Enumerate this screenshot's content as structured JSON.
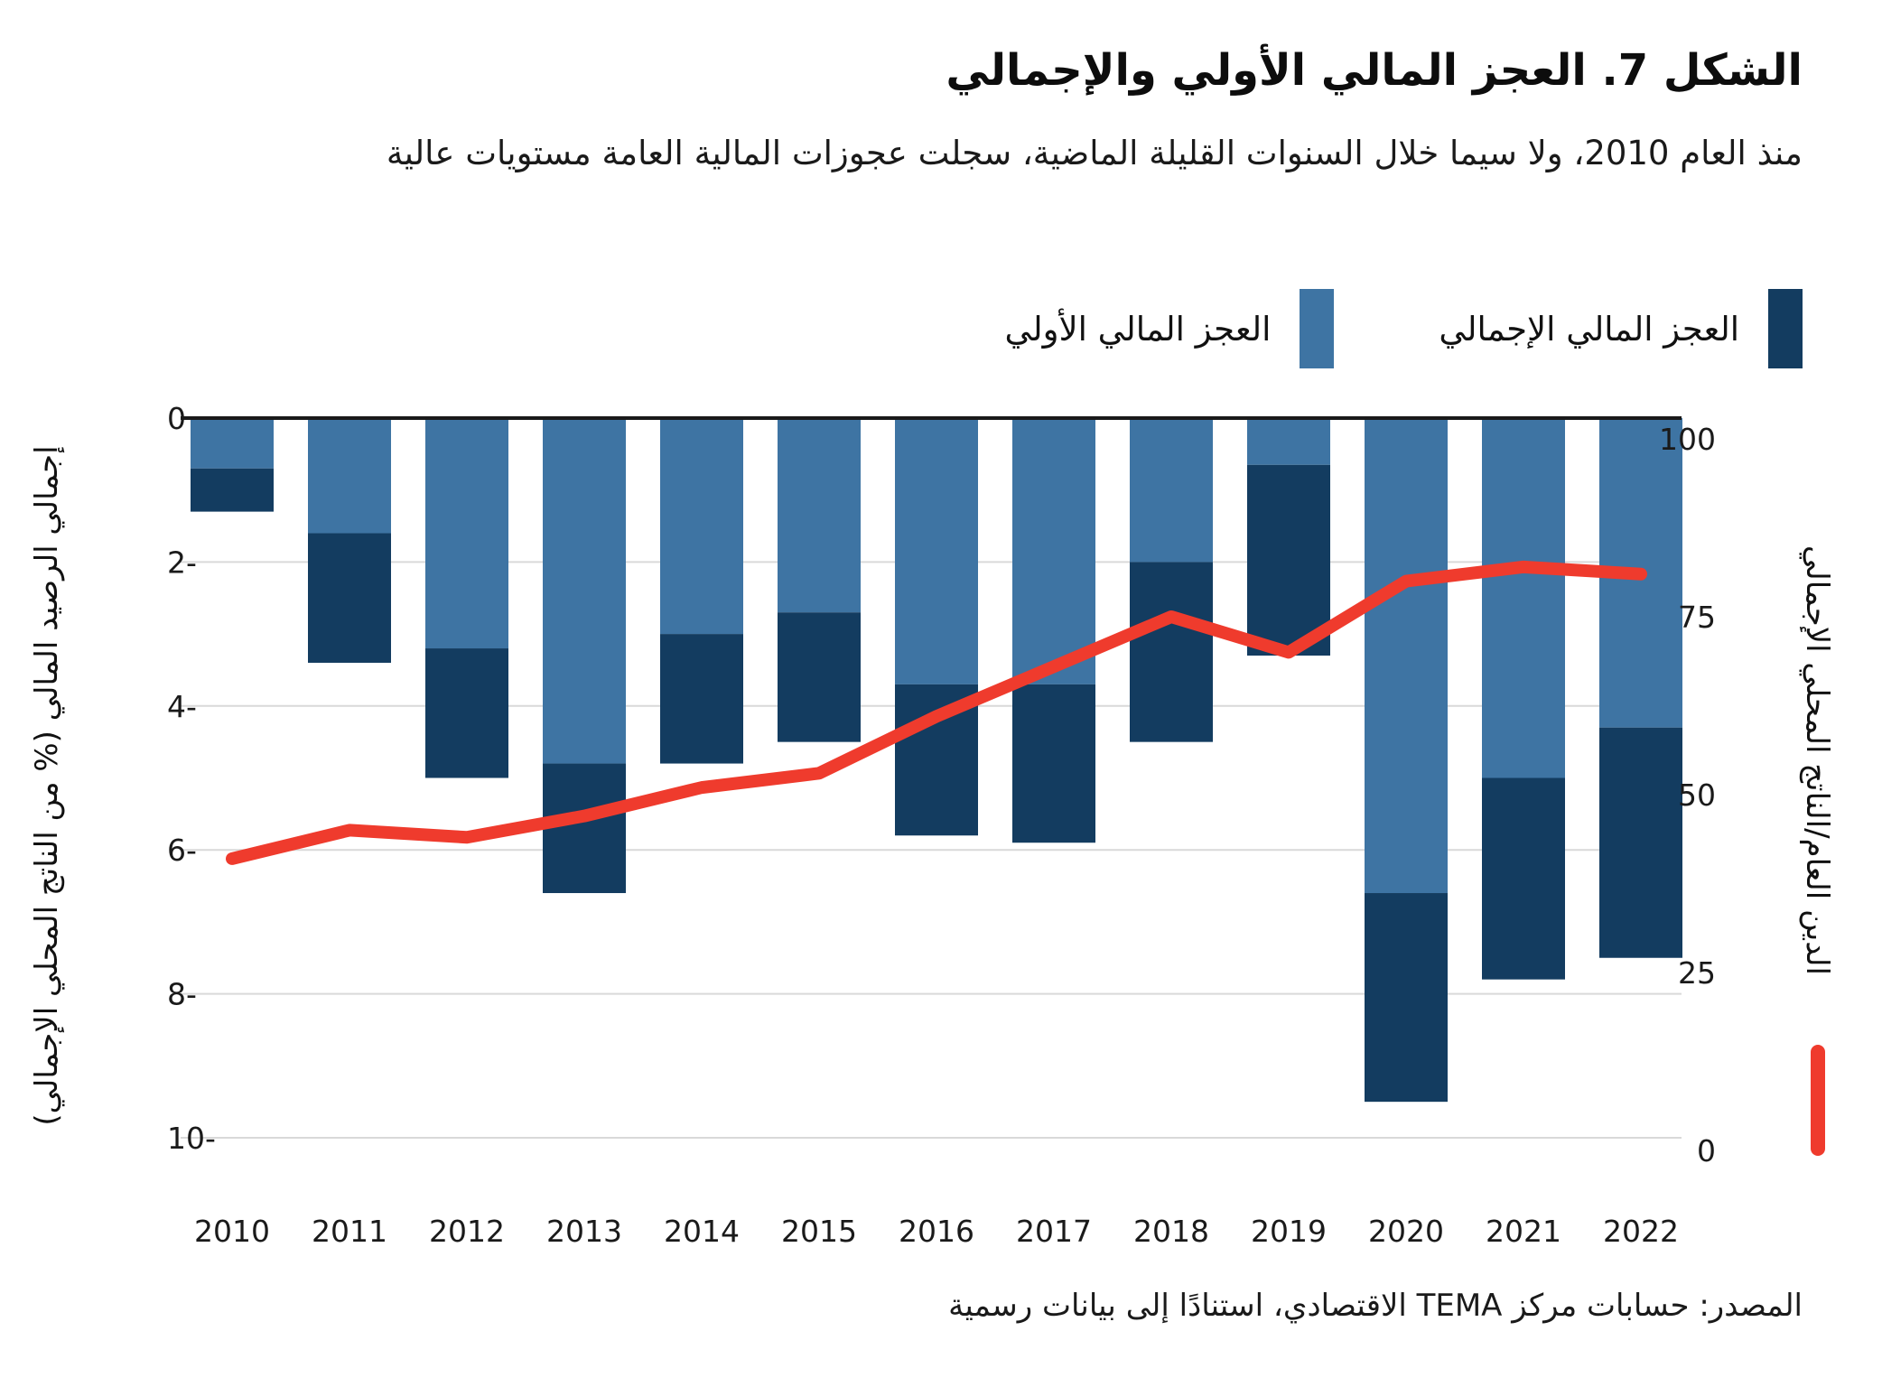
{
  "title": "الشكل 7. العجز المالي الأولي والإجمالي",
  "subtitle": "منذ العام 2010، ولا سيما خلال السنوات القليلة الماضية، سجلت عجوزات المالية العامة مستويات عالية",
  "source": "المصدر: حسابات مركز TEMA الاقتصادي، استنادًا إلى بيانات رسمية",
  "colors": {
    "primary_bar": "#3E74A3",
    "overall_bar": "#133C60",
    "debt_line": "#EF3B2D",
    "gridline": "#D9D9D9",
    "zero_line": "#1A1A1A",
    "text": "#1A1A1A",
    "background": "#FFFFFF"
  },
  "legend": {
    "items": [
      {
        "name": "overall",
        "label": "العجز المالي الإجمالي",
        "color": "#133C60"
      },
      {
        "name": "primary",
        "label": "العجز المالي الأولي",
        "color": "#3E74A3"
      }
    ]
  },
  "chart_data": {
    "type": "bar",
    "subtype": "stacked bars with overlaid line on secondary axis",
    "categories": [
      2010,
      2011,
      2012,
      2013,
      2014,
      2015,
      2016,
      2017,
      2018,
      2019,
      2020,
      2021,
      2022
    ],
    "series": [
      {
        "name": "العجز المالي الأولي",
        "type": "bar",
        "axis": "left",
        "color": "#3E74A3",
        "values": [
          -0.7,
          -1.6,
          -3.2,
          -4.8,
          -3.0,
          -2.7,
          -3.7,
          -3.7,
          -2.0,
          -0.65,
          -6.6,
          -5.0,
          -4.3
        ]
      },
      {
        "name": "العجز المالي الإجمالي",
        "type": "bar",
        "axis": "left",
        "color": "#133C60",
        "values": [
          -1.3,
          -3.4,
          -5.0,
          -6.6,
          -4.8,
          -4.5,
          -5.8,
          -5.9,
          -4.5,
          -3.3,
          -9.5,
          -7.8,
          -7.5
        ]
      },
      {
        "name": "الدين العام/الناتج المحلي الإجمالي",
        "type": "line",
        "axis": "right",
        "color": "#EF3B2D",
        "values": [
          41,
          45,
          44,
          47,
          51,
          53,
          61,
          68,
          75,
          70,
          80,
          82,
          81
        ]
      }
    ],
    "left_axis": {
      "label": "إجمالي الرصيد المالي (% من الناتج المحلي الإجمالي)",
      "ticks": [
        0,
        -2,
        -4,
        -6,
        -8,
        -10
      ],
      "range": [
        0,
        -10
      ]
    },
    "right_axis": {
      "label": "الدين العام/الناتج المحلي الإجمالي",
      "ticks": [
        100,
        75,
        50,
        25,
        0
      ],
      "range": [
        0,
        100
      ]
    },
    "grid": "horizontal",
    "legend_position": "top"
  }
}
